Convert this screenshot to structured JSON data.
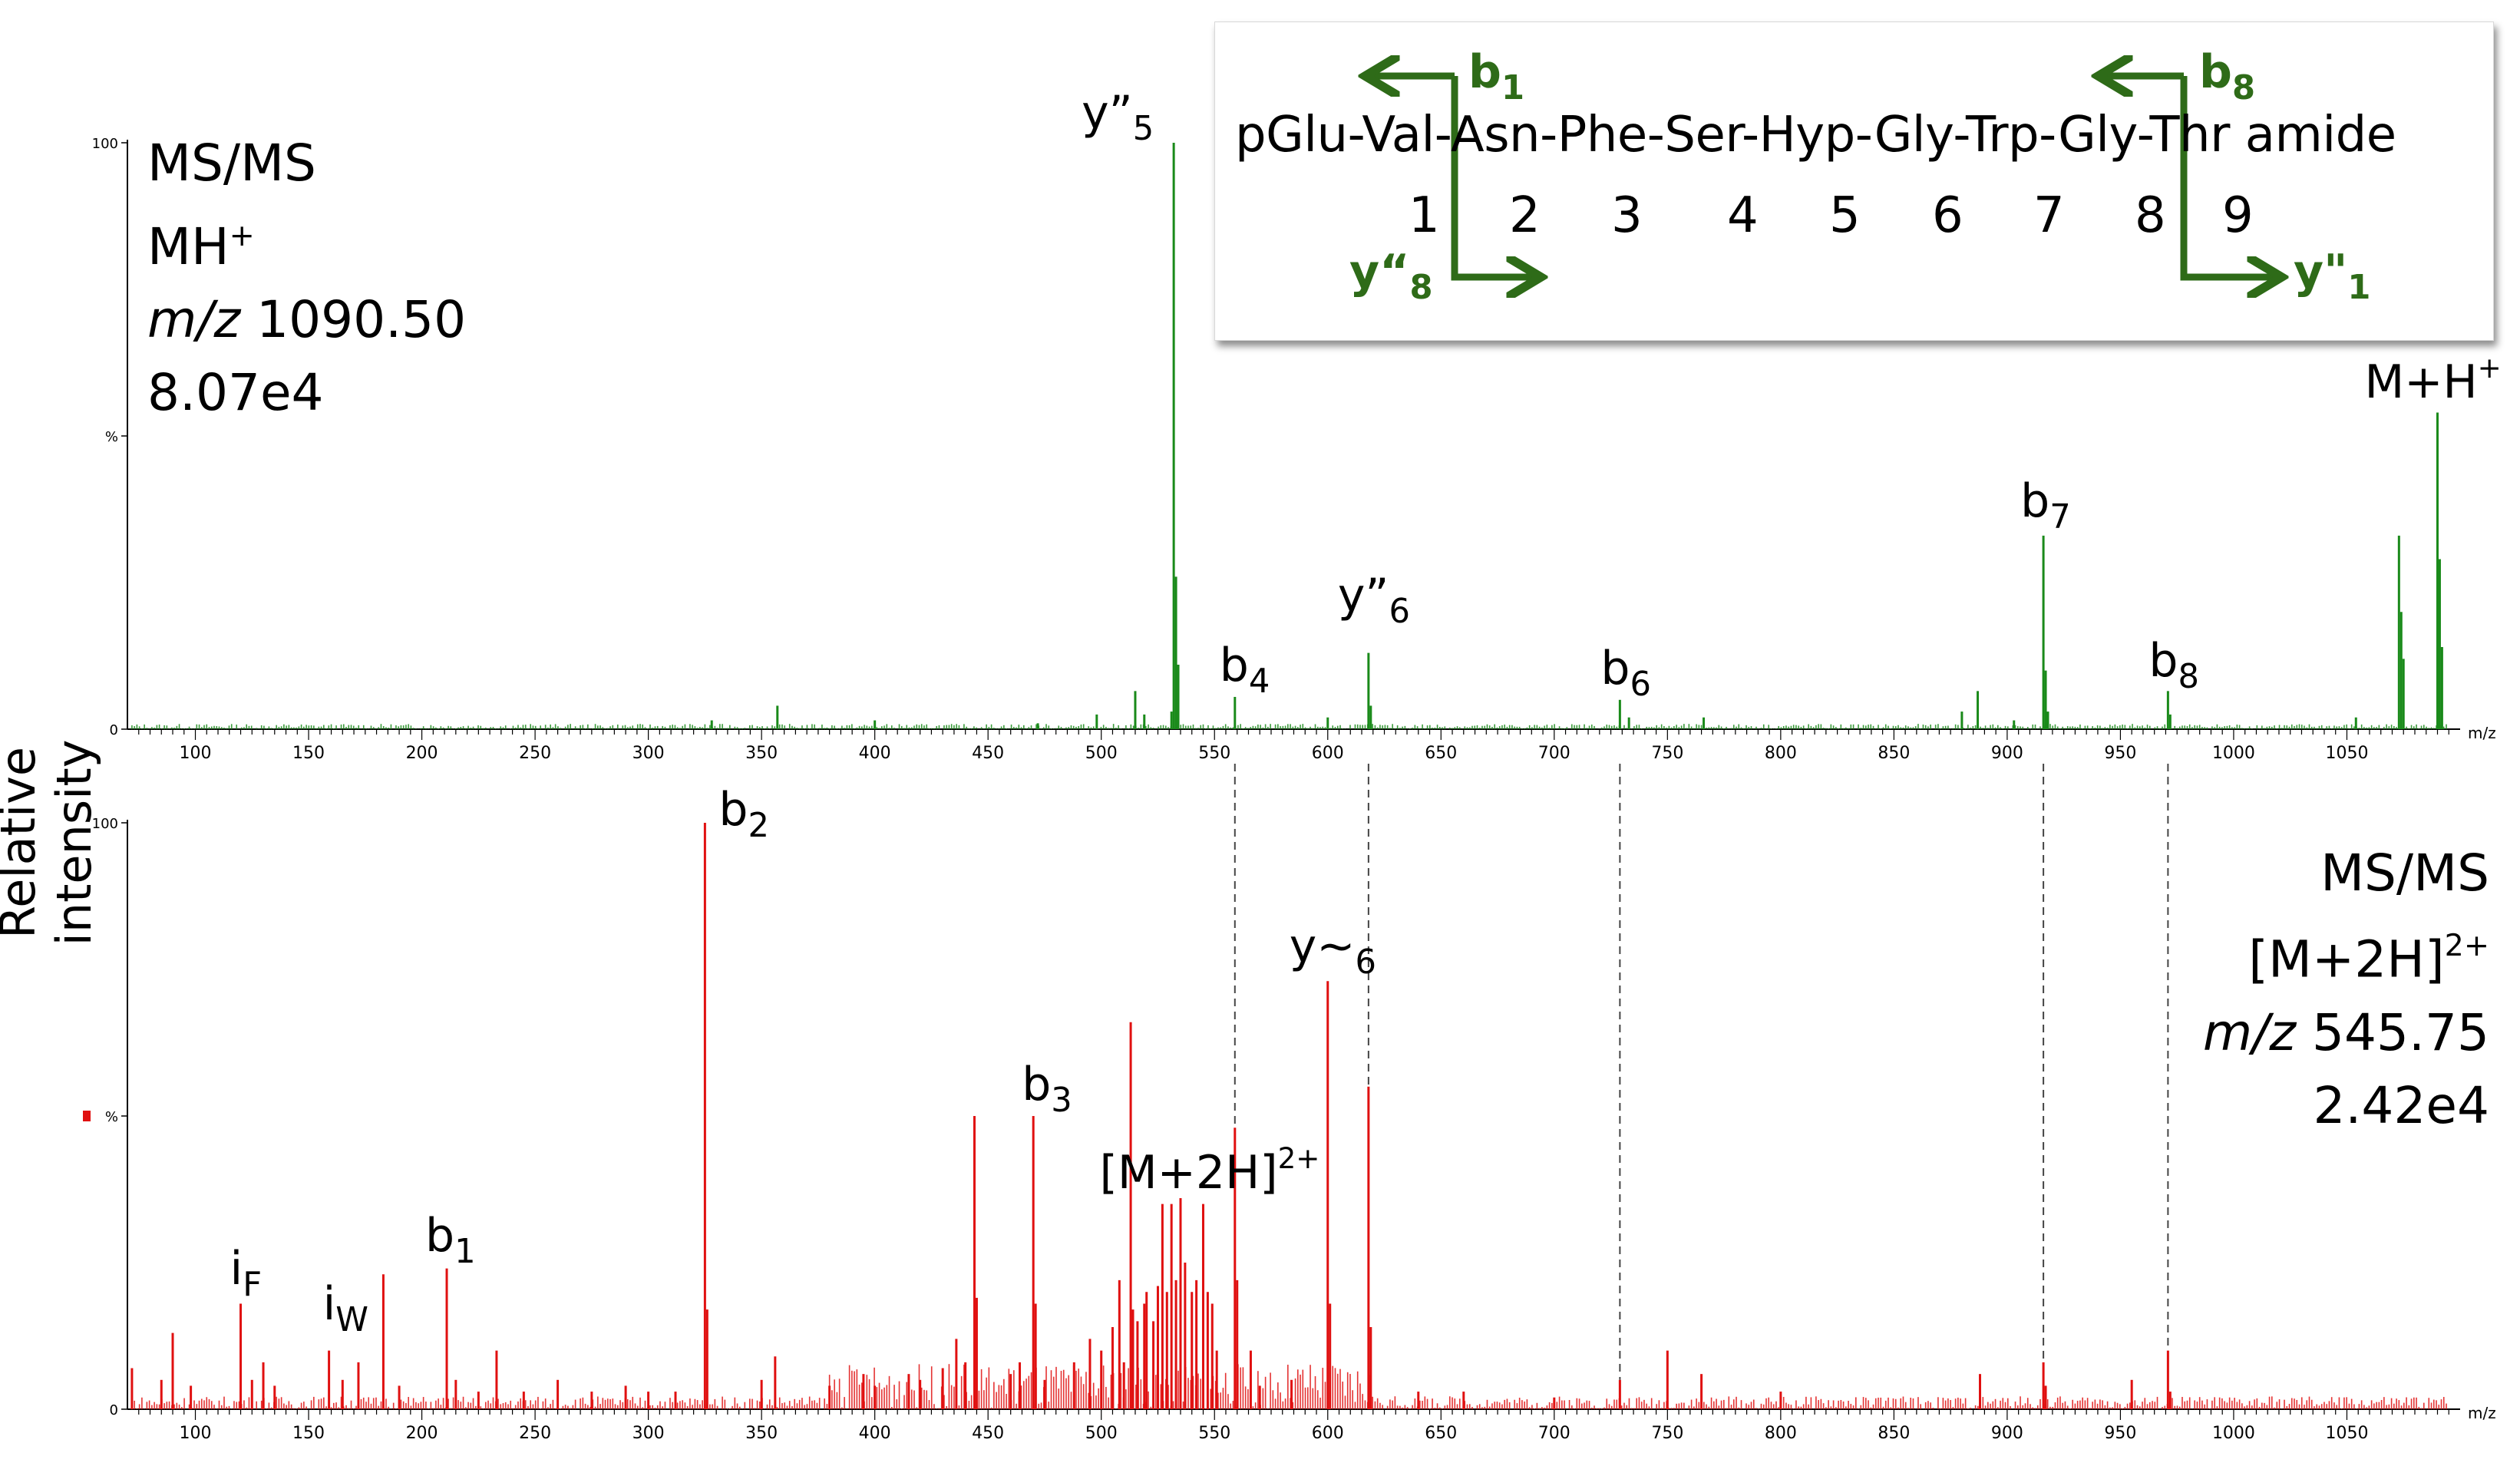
{
  "colors": {
    "top_series": "#1a8a1a",
    "bottom_series": "#e01010",
    "fragment_arrows": "#2e6b18"
  },
  "y_axis_label": "Relative intensity",
  "top_info": [
    "MS/MS",
    "MH+",
    "m/z 1090.50",
    "8.07e4"
  ],
  "bottom_info": [
    "MS/MS",
    "[M+2H]2+",
    "m/z 545.75",
    "2.42e4"
  ],
  "sequence": {
    "text": "pGlu-Val-Asn-Phe-Ser-Hyp-Gly-Trp-Gly-Thr amide",
    "positions": [
      "1",
      "2",
      "3",
      "4",
      "5",
      "6",
      "7",
      "8",
      "9"
    ],
    "fragments": {
      "b1": "b1",
      "y8": "y“8",
      "b8": "b8",
      "y1": "y\"1"
    }
  },
  "chart_data": [
    {
      "type": "bar",
      "panel": "top",
      "xlabel": "m/z",
      "ylabel": "Relative intensity",
      "xlim": [
        70,
        1100
      ],
      "ylim": [
        0,
        100
      ],
      "yticks": [
        "0",
        "%",
        "100"
      ],
      "xticks": [
        100,
        150,
        200,
        250,
        300,
        350,
        400,
        450,
        500,
        550,
        600,
        650,
        700,
        750,
        800,
        850,
        900,
        950,
        1000,
        1050
      ],
      "series": [
        {
          "peaks": [
            [
              328,
              1.5
            ],
            [
              357,
              4
            ],
            [
              400,
              1.5
            ],
            [
              472,
              1
            ],
            [
              498,
              2.5
            ],
            [
              515,
              6.5
            ],
            [
              519,
              2.5
            ],
            [
              531,
              3
            ],
            [
              532,
              100
            ],
            [
              533,
              26
            ],
            [
              534,
              11
            ],
            [
              559,
              5.5
            ],
            [
              600,
              2
            ],
            [
              618,
              13
            ],
            [
              619,
              4
            ],
            [
              729,
              5
            ],
            [
              733,
              2
            ],
            [
              766,
              2
            ],
            [
              880,
              3
            ],
            [
              887,
              6.5
            ],
            [
              903,
              1.5
            ],
            [
              916,
              33
            ],
            [
              917,
              10
            ],
            [
              918,
              3
            ],
            [
              971,
              6.5
            ],
            [
              972,
              2.5
            ],
            [
              1054,
              2
            ],
            [
              1073,
              33
            ],
            [
              1074,
              20
            ],
            [
              1075,
              12
            ],
            [
              1090,
              54
            ],
            [
              1091,
              29
            ],
            [
              1092,
              14
            ]
          ]
        }
      ],
      "peak_labels": [
        {
          "text": "y”5",
          "x": 532,
          "y": 100
        },
        {
          "text": "b4",
          "x": 559,
          "y": 5.5
        },
        {
          "text": "y”6",
          "x": 618,
          "y": 13
        },
        {
          "text": "b6",
          "x": 729,
          "y": 5
        },
        {
          "text": "b7",
          "x": 916,
          "y": 33
        },
        {
          "text": "b8",
          "x": 971,
          "y": 6.5
        },
        {
          "text": "M+H+",
          "x": 1090,
          "y": 54
        }
      ]
    },
    {
      "type": "bar",
      "panel": "bottom",
      "xlabel": "m/z",
      "ylabel": "Relative intensity",
      "xlim": [
        70,
        1100
      ],
      "ylim": [
        0,
        100
      ],
      "yticks": [
        "0",
        "%",
        "100"
      ],
      "xticks": [
        100,
        150,
        200,
        250,
        300,
        350,
        400,
        450,
        500,
        550,
        600,
        650,
        700,
        750,
        800,
        850,
        900,
        950,
        1000,
        1050
      ],
      "series": [
        {
          "peaks": [
            [
              72,
              7
            ],
            [
              85,
              5
            ],
            [
              90,
              13
            ],
            [
              98,
              4
            ],
            [
              120,
              18
            ],
            [
              125,
              5
            ],
            [
              130,
              8
            ],
            [
              135,
              4
            ],
            [
              159,
              10
            ],
            [
              165,
              5
            ],
            [
              172,
              8
            ],
            [
              183,
              23
            ],
            [
              190,
              4
            ],
            [
              211,
              24
            ],
            [
              215,
              5
            ],
            [
              225,
              3
            ],
            [
              233,
              10
            ],
            [
              245,
              3
            ],
            [
              260,
              5
            ],
            [
              275,
              3
            ],
            [
              290,
              4
            ],
            [
              300,
              3
            ],
            [
              312,
              3
            ],
            [
              325,
              100
            ],
            [
              326,
              17
            ],
            [
              350,
              5
            ],
            [
              356,
              9
            ],
            [
              380,
              4
            ],
            [
              395,
              6
            ],
            [
              400,
              4
            ],
            [
              415,
              6
            ],
            [
              420,
              5
            ],
            [
              430,
              7
            ],
            [
              436,
              12
            ],
            [
              440,
              8
            ],
            [
              444,
              50
            ],
            [
              445,
              19
            ],
            [
              460,
              6
            ],
            [
              464,
              8
            ],
            [
              470,
              50
            ],
            [
              471,
              18
            ],
            [
              475,
              5
            ],
            [
              488,
              8
            ],
            [
              495,
              12
            ],
            [
              500,
              10
            ],
            [
              505,
              14
            ],
            [
              508,
              22
            ],
            [
              510,
              8
            ],
            [
              513,
              66
            ],
            [
              514,
              17
            ],
            [
              516,
              15
            ],
            [
              519,
              18
            ],
            [
              520,
              20
            ],
            [
              523,
              15
            ],
            [
              525,
              21
            ],
            [
              527,
              35
            ],
            [
              529,
              20
            ],
            [
              531,
              35
            ],
            [
              533,
              22
            ],
            [
              535,
              36
            ],
            [
              537,
              25
            ],
            [
              540,
              20
            ],
            [
              542,
              22
            ],
            [
              545,
              35
            ],
            [
              547,
              20
            ],
            [
              549,
              18
            ],
            [
              551,
              10
            ],
            [
              559,
              48
            ],
            [
              560,
              22
            ],
            [
              566,
              10
            ],
            [
              570,
              4
            ],
            [
              584,
              5
            ],
            [
              600,
              73
            ],
            [
              601,
              18
            ],
            [
              618,
              55
            ],
            [
              619,
              14
            ],
            [
              640,
              3
            ],
            [
              660,
              3
            ],
            [
              700,
              2
            ],
            [
              729,
              5
            ],
            [
              750,
              10
            ],
            [
              765,
              6
            ],
            [
              800,
              3
            ],
            [
              888,
              6
            ],
            [
              916,
              8
            ],
            [
              917,
              4
            ],
            [
              955,
              5
            ],
            [
              971,
              10
            ],
            [
              972,
              3
            ]
          ]
        }
      ],
      "peak_labels": [
        {
          "text": "iF",
          "x": 120,
          "y": 18
        },
        {
          "text": "iW",
          "x": 159,
          "y": 10
        },
        {
          "text": "b1",
          "x": 211,
          "y": 24
        },
        {
          "text": "b2",
          "x": 325,
          "y": 100
        },
        {
          "text": "b3",
          "x": 470,
          "y": 50
        },
        {
          "text": "[M+2H]2+",
          "x": 545,
          "y": 35
        },
        {
          "text": "y~6",
          "x": 600,
          "y": 73
        }
      ]
    }
  ],
  "connectors_x": [
    559,
    618,
    729,
    916,
    971
  ]
}
